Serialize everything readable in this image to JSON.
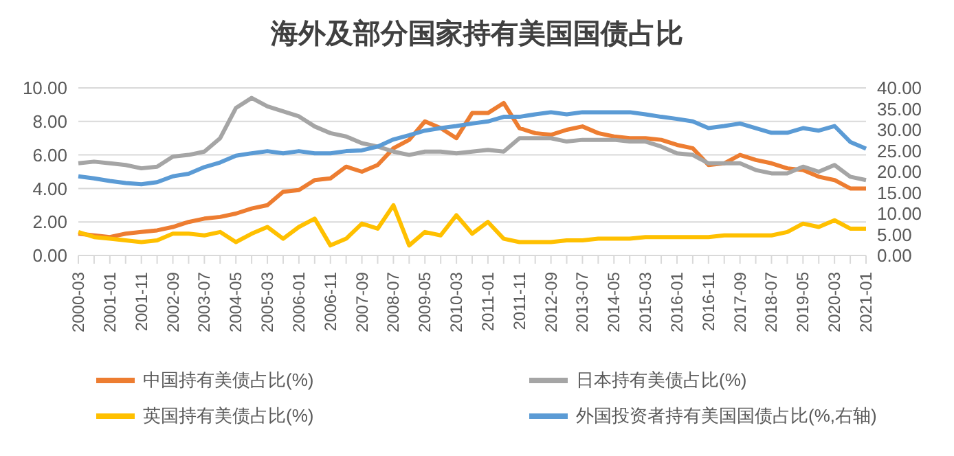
{
  "chart_data": {
    "type": "line",
    "title": "海外及部分国家持有美国国债占比",
    "categories": [
      "2000-03",
      null,
      "2001-01",
      null,
      "2001-11",
      null,
      "2002-09",
      null,
      "2003-07",
      null,
      "2004-05",
      null,
      "2005-03",
      null,
      "2006-01",
      null,
      "2006-11",
      null,
      "2007-09",
      null,
      "2008-07",
      null,
      "2009-05",
      null,
      "2010-03",
      null,
      "2011-01",
      null,
      "2011-11",
      null,
      "2012-09",
      null,
      "2013-07",
      null,
      "2014-05",
      null,
      "2015-03",
      null,
      "2016-01",
      null,
      "2016-11",
      null,
      "2017-09",
      null,
      "2018-07",
      null,
      "2019-05",
      null,
      "2020-03",
      null,
      "2021-01"
    ],
    "series": [
      {
        "name": "中国持有美债占比(%)",
        "color": "#ed7d31",
        "values": [
          1.3,
          1.2,
          1.1,
          1.3,
          1.4,
          1.5,
          1.7,
          2.0,
          2.2,
          2.3,
          2.5,
          2.8,
          3.0,
          3.8,
          3.9,
          4.5,
          4.6,
          5.3,
          5.0,
          5.4,
          6.4,
          6.9,
          8.0,
          7.6,
          7.0,
          8.5,
          8.5,
          9.1,
          7.6,
          7.3,
          7.2,
          7.5,
          7.7,
          7.3,
          7.1,
          7.0,
          7.0,
          6.9,
          6.6,
          6.4,
          5.4,
          5.5,
          6.0,
          5.7,
          5.5,
          5.2,
          5.1,
          4.7,
          4.5,
          4.0,
          4.0
        ]
      },
      {
        "name": "日本持有美债占比(%)",
        "color": "#a5a5a5",
        "values": [
          5.5,
          5.6,
          5.5,
          5.4,
          5.2,
          5.3,
          5.9,
          6.0,
          6.2,
          7.0,
          8.8,
          9.4,
          8.9,
          8.6,
          8.3,
          7.7,
          7.3,
          7.1,
          6.7,
          6.5,
          6.2,
          6.0,
          6.2,
          6.2,
          6.1,
          6.2,
          6.3,
          6.2,
          7.0,
          7.0,
          7.0,
          6.8,
          6.9,
          6.9,
          6.9,
          6.8,
          6.8,
          6.5,
          6.1,
          6.0,
          5.5,
          5.5,
          5.5,
          5.1,
          4.9,
          4.9,
          5.3,
          5.0,
          5.4,
          4.7,
          4.5
        ]
      },
      {
        "name": "英国持有美债占比(%)",
        "color": "#ffc000",
        "values": [
          1.4,
          1.1,
          1.0,
          0.9,
          0.8,
          0.9,
          1.3,
          1.3,
          1.2,
          1.4,
          0.8,
          1.3,
          1.7,
          1.0,
          1.7,
          2.2,
          0.6,
          1.0,
          1.9,
          1.6,
          3.0,
          0.6,
          1.4,
          1.2,
          2.4,
          1.3,
          2.0,
          1.0,
          0.8,
          0.8,
          0.8,
          0.9,
          0.9,
          1.0,
          1.0,
          1.0,
          1.1,
          1.1,
          1.1,
          1.1,
          1.1,
          1.2,
          1.2,
          1.2,
          1.2,
          1.4,
          1.9,
          1.7,
          2.1,
          1.6,
          1.6
        ]
      },
      {
        "name": "外国投资者持有美国国债占比(%,右轴)",
        "color": "#5b9bd5",
        "axis": "y2",
        "values": [
          18.9,
          18.4,
          17.8,
          17.3,
          17.0,
          17.5,
          18.9,
          19.5,
          21.1,
          22.2,
          23.8,
          24.4,
          24.9,
          24.4,
          24.9,
          24.4,
          24.4,
          24.9,
          25.1,
          26.0,
          27.7,
          28.7,
          29.8,
          30.4,
          30.9,
          31.5,
          32.0,
          33.1,
          33.1,
          33.7,
          34.2,
          33.7,
          34.2,
          34.2,
          34.2,
          34.2,
          33.7,
          33.1,
          32.6,
          32.0,
          30.4,
          30.9,
          31.5,
          30.4,
          29.3,
          29.3,
          30.4,
          29.8,
          30.9,
          27.1,
          25.5
        ]
      }
    ],
    "ylim": [
      0,
      10
    ],
    "yticks": [
      {
        "value": 0,
        "label": "0.00"
      },
      {
        "value": 2,
        "label": "2.00"
      },
      {
        "value": 4,
        "label": "4.00"
      },
      {
        "value": 6,
        "label": "6.00"
      },
      {
        "value": 8,
        "label": "8.00"
      },
      {
        "value": 10,
        "label": "10.00"
      }
    ],
    "y2lim": [
      0,
      40
    ],
    "y2ticks": [
      {
        "value": 0,
        "label": "0.00"
      },
      {
        "value": 5,
        "label": "5.00"
      },
      {
        "value": 10,
        "label": "10.00"
      },
      {
        "value": 15,
        "label": "15.00"
      },
      {
        "value": 20,
        "label": "20.00"
      },
      {
        "value": 25,
        "label": "25.00"
      },
      {
        "value": 30,
        "label": "30.00"
      },
      {
        "value": 35,
        "label": "35.00"
      },
      {
        "value": 40,
        "label": "40.00"
      }
    ],
    "grid": "y",
    "legend": "bottom",
    "marker": "none",
    "line_style": "solid"
  }
}
